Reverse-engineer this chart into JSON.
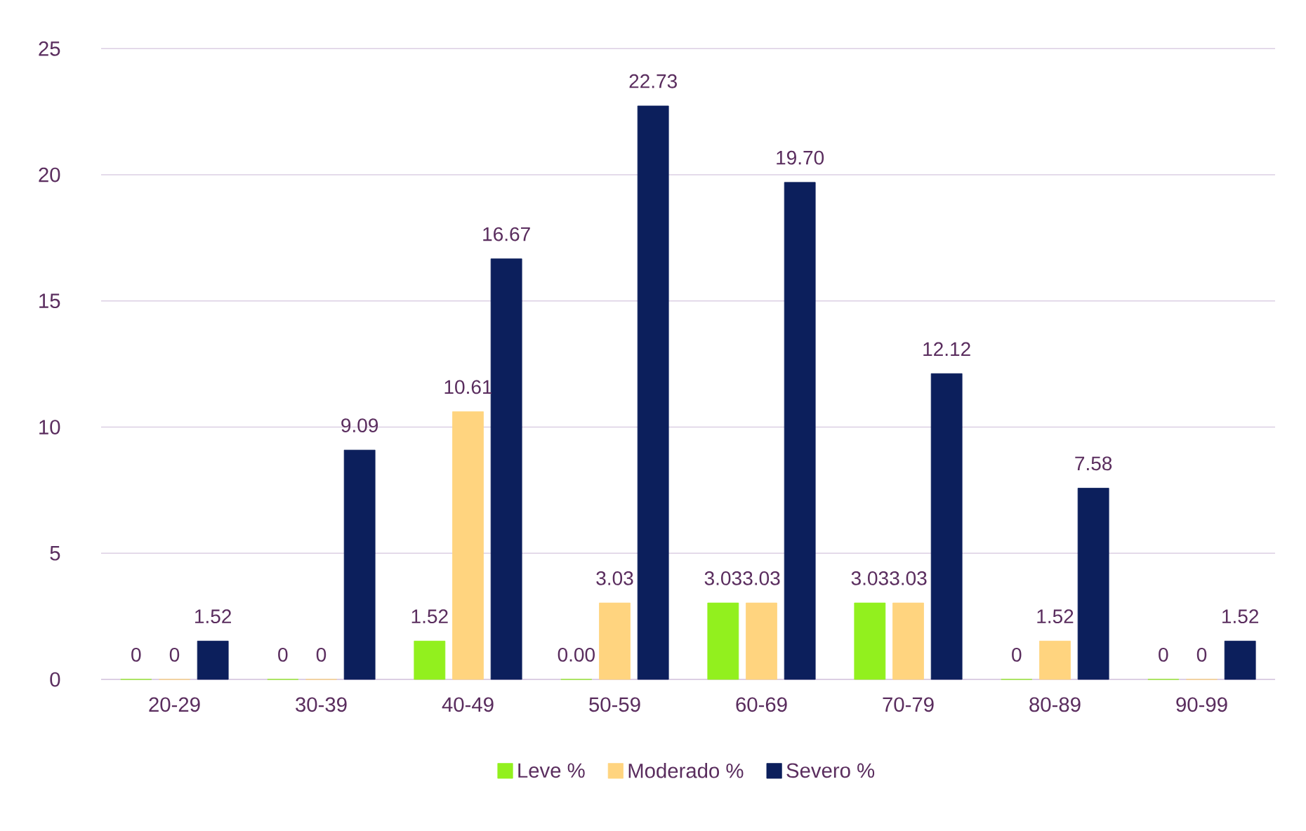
{
  "chart_data": {
    "type": "bar",
    "categories": [
      "20-29",
      "30-39",
      "40-49",
      "50-59",
      "60-69",
      "70-79",
      "80-89",
      "90-99"
    ],
    "series": [
      {
        "name": "Leve %",
        "color": "#92f01e",
        "values": [
          0,
          0,
          1.52,
          0.0,
          3.03,
          3.03,
          0,
          0
        ],
        "value_labels": [
          "0",
          "0",
          "1.52",
          "0.00",
          "3.03",
          "3.03",
          "0",
          "0"
        ]
      },
      {
        "name": "Moderado %",
        "color": "#ffd47f",
        "values": [
          0,
          0,
          10.61,
          3.03,
          3.03,
          3.03,
          1.52,
          0
        ],
        "value_labels": [
          "0",
          "0",
          "10.61",
          "3.03",
          "3.03",
          "3.03",
          "1.52",
          "0"
        ]
      },
      {
        "name": "Severo %",
        "color": "#0c1f5c",
        "values": [
          1.52,
          9.09,
          16.67,
          22.73,
          19.7,
          12.12,
          7.58,
          1.52
        ],
        "value_labels": [
          "1.52",
          "9.09",
          "16.67",
          "22.73",
          "19.70",
          "12.12",
          "7.58",
          "1.52"
        ]
      }
    ],
    "ylim": [
      0,
      25
    ],
    "yticks": [
      0,
      5,
      10,
      15,
      20,
      25
    ],
    "grid": "y",
    "legend": "bottom"
  }
}
